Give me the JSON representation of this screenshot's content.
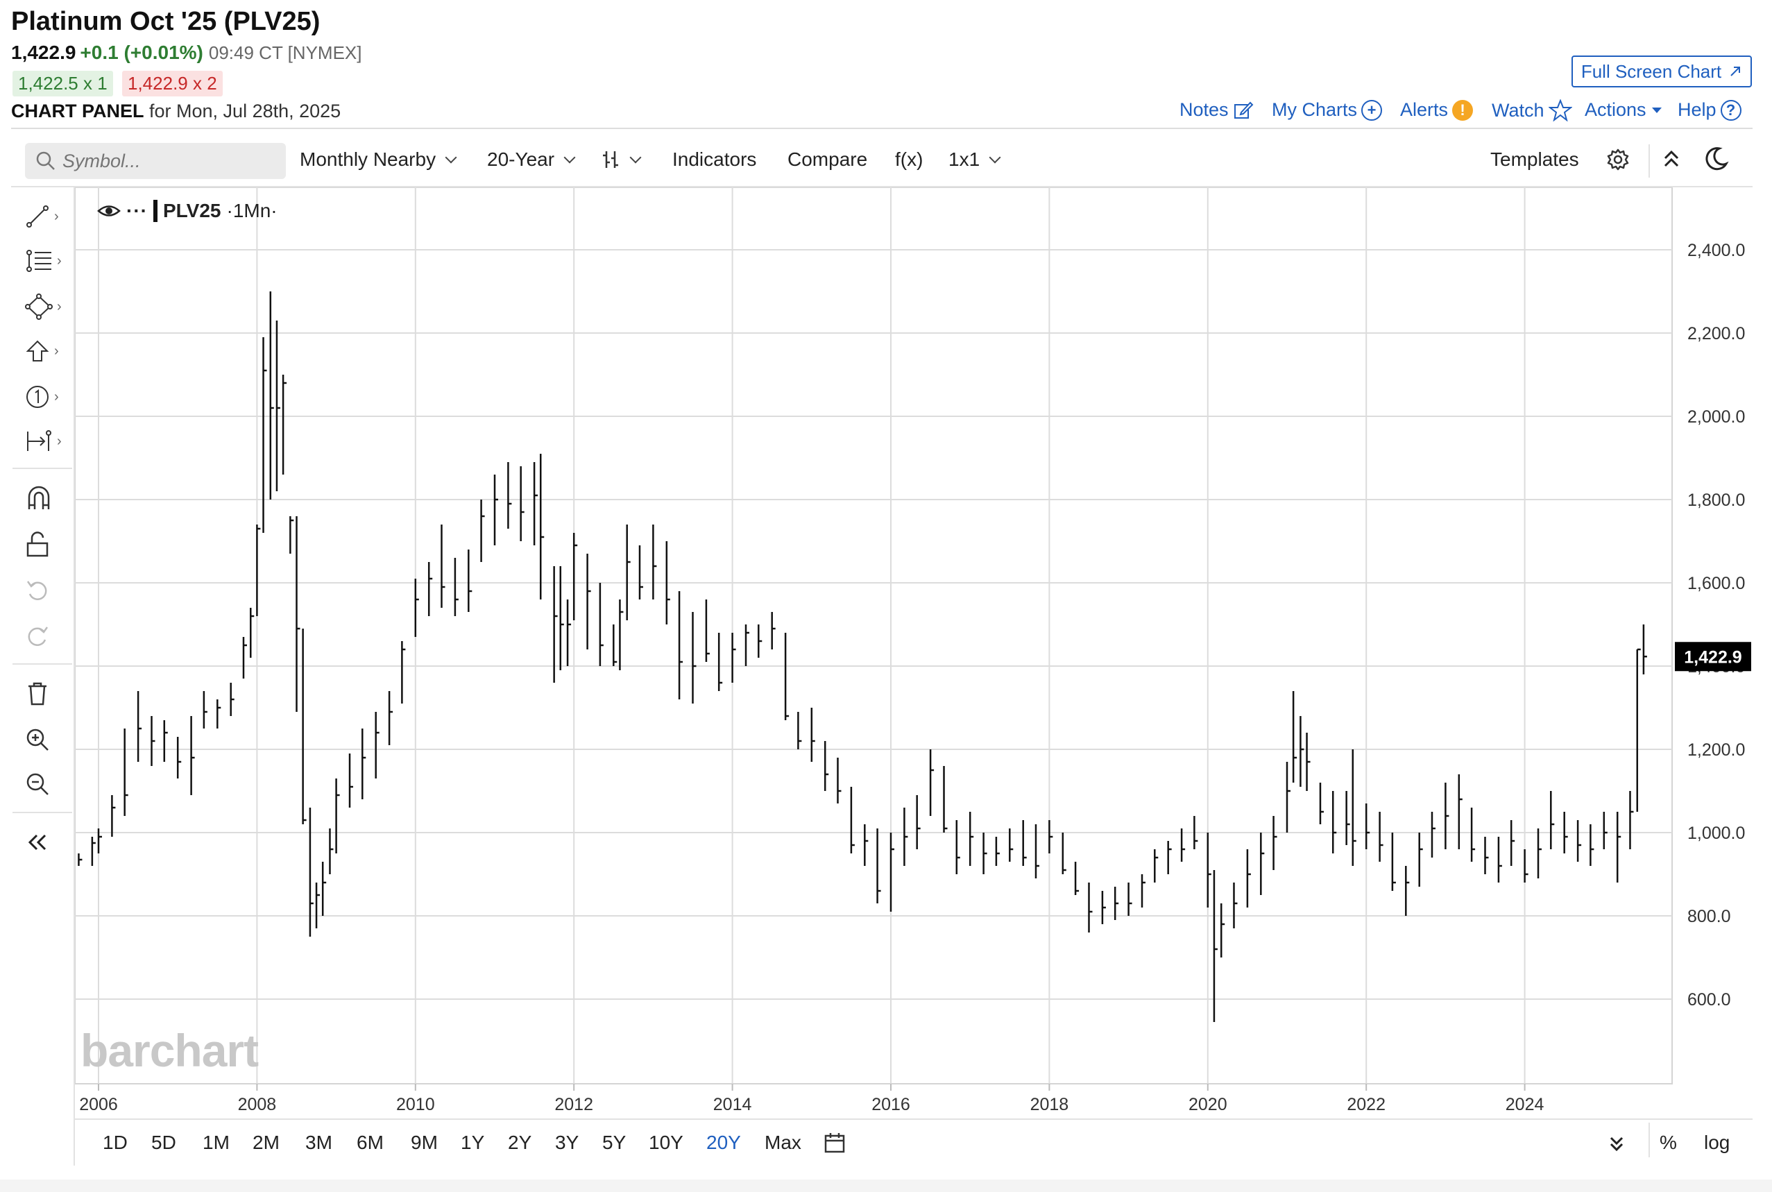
{
  "header": {
    "title": "Platinum Oct '25 (PLV25)",
    "last": "1,422.9",
    "change": "+0.1 (+0.01%)",
    "time_exchange": "09:49 CT [NYMEX]",
    "bid": "1,422.5 x 1",
    "ask": "1,422.9 x 2",
    "panel_label": "CHART PANEL",
    "panel_date": "for Mon, Jul 28th, 2025",
    "full_screen": "Full Screen Chart",
    "links": {
      "notes": "Notes",
      "my_charts": "My Charts",
      "alerts": "Alerts",
      "watch": "Watch",
      "actions": "Actions",
      "help": "Help"
    }
  },
  "toolbar": {
    "search_placeholder": "Symbol...",
    "data_type": "Monthly Nearby",
    "period": "20-Year",
    "indicators": "Indicators",
    "compare": "Compare",
    "fx": "f(x)",
    "layout": "1x1",
    "templates": "Templates"
  },
  "legend": {
    "symbol": "PLV25",
    "interval": "·1Mn·"
  },
  "watermark": "barchart",
  "ranges": [
    "1D",
    "5D",
    "1M",
    "2M",
    "3M",
    "6M",
    "9M",
    "1Y",
    "2Y",
    "3Y",
    "5Y",
    "10Y",
    "20Y",
    "Max"
  ],
  "active_range": "20Y",
  "scale_buttons": {
    "percent": "%",
    "log": "log"
  },
  "colors": {
    "accent": "#1f5fbf",
    "up": "#2e7d32",
    "down": "#c62828",
    "price_tag": "#000000"
  },
  "chart_data": {
    "type": "ohlc",
    "title": "Platinum Oct '25 (PLV25)",
    "interval": "monthly",
    "last_price": 1422.9,
    "last_price_label": "1,422.9",
    "xlim": [
      2005.7,
      2025.75
    ],
    "ylim": [
      405,
      2530
    ],
    "y_ticks": [
      600,
      800,
      1000,
      1200,
      1400,
      1600,
      1800,
      2000,
      2200,
      2400
    ],
    "y_tick_labels": [
      "600.0",
      "800.0",
      "1,000.0",
      "1,200.0",
      "1,400.0",
      "1,600.0",
      "1,800.0",
      "2,000.0",
      "2,200.0",
      "2,400.0"
    ],
    "x_ticks": [
      2006,
      2008,
      2010,
      2012,
      2014,
      2016,
      2018,
      2020,
      2022,
      2024
    ],
    "x_tick_labels": [
      "2006",
      "2008",
      "2010",
      "2012",
      "2014",
      "2016",
      "2018",
      "2020",
      "2022",
      "2024"
    ],
    "grid": true,
    "price_axis": "right",
    "series": [
      {
        "name": "PLV25",
        "points": [
          [
            2005.75,
            950,
            920,
            935
          ],
          [
            2005.92,
            990,
            920,
            975
          ],
          [
            2006.0,
            1010,
            950,
            990
          ],
          [
            2006.17,
            1090,
            990,
            1060
          ],
          [
            2006.33,
            1250,
            1040,
            1090
          ],
          [
            2006.5,
            1340,
            1170,
            1250
          ],
          [
            2006.67,
            1280,
            1160,
            1220
          ],
          [
            2006.83,
            1270,
            1170,
            1240
          ],
          [
            2007.0,
            1230,
            1130,
            1170
          ],
          [
            2007.17,
            1280,
            1090,
            1180
          ],
          [
            2007.33,
            1340,
            1250,
            1290
          ],
          [
            2007.5,
            1320,
            1250,
            1300
          ],
          [
            2007.67,
            1360,
            1280,
            1320
          ],
          [
            2007.83,
            1470,
            1370,
            1450
          ],
          [
            2007.92,
            1540,
            1420,
            1520
          ],
          [
            2008.0,
            1740,
            1520,
            1730
          ],
          [
            2008.08,
            2190,
            1720,
            2110
          ],
          [
            2008.17,
            2300,
            1800,
            2020
          ],
          [
            2008.25,
            2230,
            1820,
            2020
          ],
          [
            2008.33,
            2100,
            1860,
            2080
          ],
          [
            2008.42,
            1760,
            1670,
            1750
          ],
          [
            2008.5,
            1760,
            1290,
            1490
          ],
          [
            2008.58,
            1490,
            1020,
            1030
          ],
          [
            2008.67,
            1060,
            750,
            830
          ],
          [
            2008.75,
            880,
            770,
            850
          ],
          [
            2008.83,
            930,
            800,
            880
          ],
          [
            2008.92,
            1010,
            900,
            960
          ],
          [
            2009.0,
            1130,
            950,
            1090
          ],
          [
            2009.17,
            1190,
            1060,
            1110
          ],
          [
            2009.33,
            1250,
            1080,
            1180
          ],
          [
            2009.5,
            1290,
            1130,
            1240
          ],
          [
            2009.67,
            1340,
            1210,
            1290
          ],
          [
            2009.83,
            1460,
            1310,
            1440
          ],
          [
            2010.0,
            1610,
            1470,
            1560
          ],
          [
            2010.17,
            1650,
            1520,
            1610
          ],
          [
            2010.33,
            1740,
            1540,
            1590
          ],
          [
            2010.5,
            1660,
            1520,
            1560
          ],
          [
            2010.67,
            1680,
            1530,
            1580
          ],
          [
            2010.83,
            1800,
            1650,
            1760
          ],
          [
            2011.0,
            1860,
            1690,
            1800
          ],
          [
            2011.17,
            1890,
            1730,
            1790
          ],
          [
            2011.33,
            1880,
            1700,
            1770
          ],
          [
            2011.5,
            1890,
            1690,
            1810
          ],
          [
            2011.58,
            1910,
            1560,
            1710
          ],
          [
            2011.75,
            1640,
            1360,
            1520
          ],
          [
            2011.83,
            1640,
            1390,
            1500
          ],
          [
            2011.92,
            1560,
            1400,
            1500
          ],
          [
            2012.0,
            1720,
            1510,
            1690
          ],
          [
            2012.17,
            1670,
            1440,
            1580
          ],
          [
            2012.33,
            1600,
            1400,
            1450
          ],
          [
            2012.5,
            1500,
            1400,
            1410
          ],
          [
            2012.58,
            1560,
            1390,
            1530
          ],
          [
            2012.67,
            1740,
            1510,
            1650
          ],
          [
            2012.83,
            1690,
            1560,
            1590
          ],
          [
            2013.0,
            1740,
            1560,
            1640
          ],
          [
            2013.17,
            1700,
            1500,
            1560
          ],
          [
            2013.33,
            1580,
            1320,
            1410
          ],
          [
            2013.5,
            1530,
            1310,
            1400
          ],
          [
            2013.67,
            1560,
            1410,
            1430
          ],
          [
            2013.83,
            1480,
            1340,
            1360
          ],
          [
            2014.0,
            1480,
            1360,
            1440
          ],
          [
            2014.17,
            1500,
            1400,
            1480
          ],
          [
            2014.33,
            1500,
            1420,
            1460
          ],
          [
            2014.5,
            1530,
            1440,
            1490
          ],
          [
            2014.67,
            1480,
            1270,
            1280
          ],
          [
            2014.83,
            1290,
            1200,
            1220
          ],
          [
            2015.0,
            1300,
            1170,
            1220
          ],
          [
            2015.17,
            1220,
            1100,
            1140
          ],
          [
            2015.33,
            1180,
            1070,
            1100
          ],
          [
            2015.5,
            1110,
            950,
            970
          ],
          [
            2015.67,
            1020,
            920,
            980
          ],
          [
            2015.83,
            1010,
            830,
            860
          ],
          [
            2016.0,
            1000,
            810,
            960
          ],
          [
            2016.17,
            1060,
            920,
            990
          ],
          [
            2016.33,
            1090,
            960,
            1010
          ],
          [
            2016.5,
            1200,
            1040,
            1150
          ],
          [
            2016.67,
            1160,
            1000,
            1010
          ],
          [
            2016.83,
            1030,
            900,
            940
          ],
          [
            2017.0,
            1050,
            920,
            990
          ],
          [
            2017.17,
            1000,
            900,
            950
          ],
          [
            2017.33,
            990,
            920,
            950
          ],
          [
            2017.5,
            1010,
            930,
            960
          ],
          [
            2017.67,
            1030,
            920,
            940
          ],
          [
            2017.83,
            1020,
            890,
            920
          ],
          [
            2018.0,
            1030,
            950,
            990
          ],
          [
            2018.17,
            1000,
            900,
            910
          ],
          [
            2018.33,
            930,
            850,
            860
          ],
          [
            2018.5,
            880,
            760,
            810
          ],
          [
            2018.67,
            860,
            780,
            820
          ],
          [
            2018.83,
            870,
            790,
            830
          ],
          [
            2019.0,
            880,
            800,
            830
          ],
          [
            2019.17,
            900,
            820,
            880
          ],
          [
            2019.33,
            960,
            880,
            940
          ],
          [
            2019.5,
            980,
            900,
            960
          ],
          [
            2019.67,
            1010,
            930,
            960
          ],
          [
            2019.83,
            1040,
            960,
            980
          ],
          [
            2020.0,
            1000,
            820,
            900
          ],
          [
            2020.08,
            910,
            545,
            720
          ],
          [
            2020.17,
            830,
            700,
            780
          ],
          [
            2020.33,
            880,
            770,
            830
          ],
          [
            2020.5,
            960,
            820,
            900
          ],
          [
            2020.67,
            1000,
            850,
            950
          ],
          [
            2020.83,
            1040,
            910,
            990
          ],
          [
            2021.0,
            1170,
            1000,
            1100
          ],
          [
            2021.08,
            1340,
            1120,
            1180
          ],
          [
            2021.17,
            1280,
            1110,
            1200
          ],
          [
            2021.25,
            1240,
            1100,
            1170
          ],
          [
            2021.42,
            1120,
            1020,
            1050
          ],
          [
            2021.58,
            1100,
            950,
            1000
          ],
          [
            2021.75,
            1100,
            970,
            1020
          ],
          [
            2021.83,
            1200,
            920,
            980
          ],
          [
            2022.0,
            1070,
            960,
            1000
          ],
          [
            2022.17,
            1050,
            930,
            970
          ],
          [
            2022.33,
            1000,
            860,
            880
          ],
          [
            2022.5,
            920,
            800,
            880
          ],
          [
            2022.67,
            1000,
            870,
            960
          ],
          [
            2022.83,
            1050,
            940,
            1010
          ],
          [
            2023.0,
            1120,
            960,
            1040
          ],
          [
            2023.17,
            1140,
            960,
            1080
          ],
          [
            2023.33,
            1060,
            930,
            960
          ],
          [
            2023.5,
            990,
            900,
            940
          ],
          [
            2023.67,
            990,
            880,
            920
          ],
          [
            2023.83,
            1030,
            920,
            980
          ],
          [
            2024.0,
            960,
            880,
            900
          ],
          [
            2024.17,
            1010,
            890,
            960
          ],
          [
            2024.33,
            1100,
            960,
            1020
          ],
          [
            2024.5,
            1050,
            950,
            990
          ],
          [
            2024.67,
            1030,
            930,
            970
          ],
          [
            2024.83,
            1020,
            920,
            960
          ],
          [
            2025.0,
            1050,
            960,
            1000
          ],
          [
            2025.17,
            1050,
            880,
            990
          ],
          [
            2025.33,
            1100,
            960,
            1050
          ],
          [
            2025.42,
            1440,
            1050,
            1440
          ],
          [
            2025.5,
            1500,
            1380,
            1422.9
          ]
        ]
      }
    ]
  }
}
